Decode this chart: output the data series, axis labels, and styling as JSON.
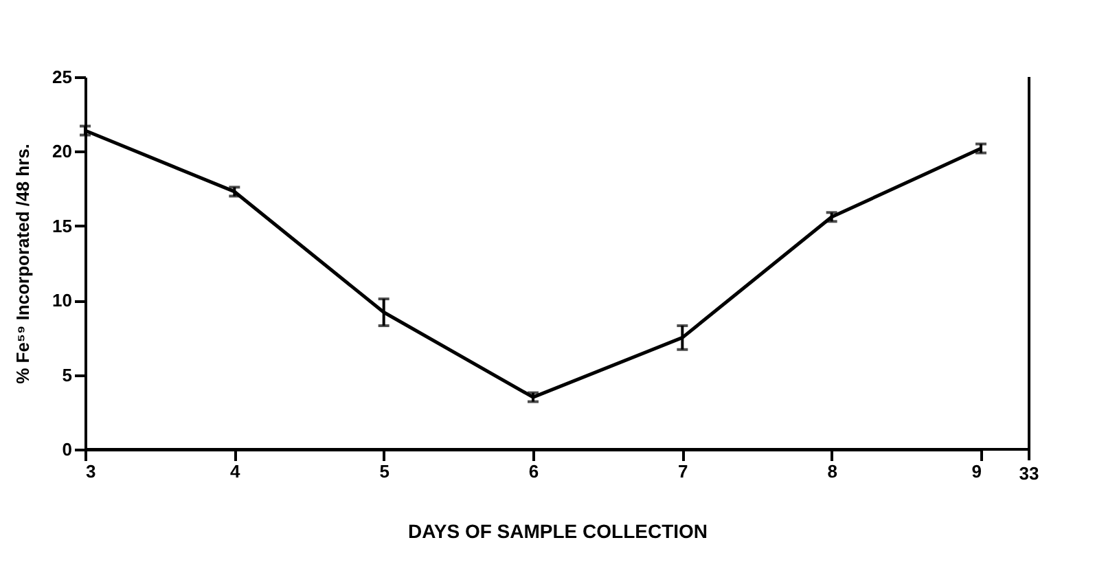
{
  "chart_data": {
    "type": "line",
    "xlabel": "DAYS  OF  SAMPLE  COLLECTION",
    "ylabel": "% Fe⁵⁹ Incorporated /48 hrs.",
    "x": [
      3,
      4,
      5,
      6,
      7,
      8,
      9
    ],
    "series": [
      {
        "color": "#000000",
        "values": [
          21.4,
          17.3,
          9.2,
          3.5,
          7.5,
          15.6,
          20.2
        ],
        "errors": [
          0.3,
          0.3,
          0.9,
          0.3,
          0.8,
          0.3,
          0.3
        ]
      }
    ],
    "xlim": [
      3,
      9
    ],
    "xticks": [
      3,
      4,
      5,
      6,
      7,
      8,
      9
    ],
    "annotations": [
      "33"
    ],
    "ylim": [
      0,
      25
    ],
    "yticks": [
      0,
      5,
      10,
      15,
      20,
      25
    ],
    "grid": false,
    "marker": "none",
    "line_style": "solid"
  }
}
